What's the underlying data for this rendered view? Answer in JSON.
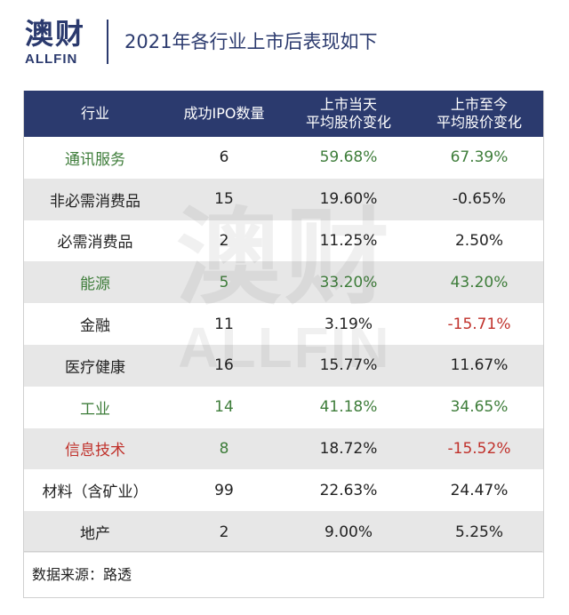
{
  "header": {
    "logo_cn": "澳财",
    "logo_en": "ALLFIN",
    "title": "2021年各行业上市后表现如下"
  },
  "watermark": {
    "cn": "澳财",
    "en": "ALLFIN"
  },
  "table": {
    "columns": [
      "行业",
      "成功IPO数量",
      "上市当天\n平均股价变化",
      "上市至今\n平均股价变化"
    ],
    "rows": [
      {
        "industry": "通讯服务",
        "ipo_count": "6",
        "first_day_change": "59.68%",
        "to_date_change": "67.39%",
        "industry_color": "green",
        "count_color": "",
        "day_color": "green",
        "date_color": "green"
      },
      {
        "industry": "非必需消费品",
        "ipo_count": "15",
        "first_day_change": "19.60%",
        "to_date_change": "-0.65%",
        "industry_color": "",
        "count_color": "",
        "day_color": "",
        "date_color": ""
      },
      {
        "industry": "必需消费品",
        "ipo_count": "2",
        "first_day_change": "11.25%",
        "to_date_change": "2.50%",
        "industry_color": "",
        "count_color": "",
        "day_color": "",
        "date_color": ""
      },
      {
        "industry": "能源",
        "ipo_count": "5",
        "first_day_change": "33.20%",
        "to_date_change": "43.20%",
        "industry_color": "green",
        "count_color": "green",
        "day_color": "green",
        "date_color": "green"
      },
      {
        "industry": "金融",
        "ipo_count": "11",
        "first_day_change": "3.19%",
        "to_date_change": "-15.71%",
        "industry_color": "",
        "count_color": "",
        "day_color": "",
        "date_color": "red"
      },
      {
        "industry": "医疗健康",
        "ipo_count": "16",
        "first_day_change": "15.77%",
        "to_date_change": "11.67%",
        "industry_color": "",
        "count_color": "",
        "day_color": "",
        "date_color": ""
      },
      {
        "industry": "工业",
        "ipo_count": "14",
        "first_day_change": "41.18%",
        "to_date_change": "34.65%",
        "industry_color": "green",
        "count_color": "green",
        "day_color": "green",
        "date_color": "green"
      },
      {
        "industry": "信息技术",
        "ipo_count": "8",
        "first_day_change": "18.72%",
        "to_date_change": "-15.52%",
        "industry_color": "red",
        "count_color": "green",
        "day_color": "",
        "date_color": "red"
      },
      {
        "industry": "材料（含矿业）",
        "ipo_count": "99",
        "first_day_change": "22.63%",
        "to_date_change": "24.47%",
        "industry_color": "",
        "count_color": "",
        "day_color": "",
        "date_color": ""
      },
      {
        "industry": "地产",
        "ipo_count": "2",
        "first_day_change": "9.00%",
        "to_date_change": "5.25%",
        "industry_color": "",
        "count_color": "",
        "day_color": "",
        "date_color": ""
      }
    ]
  },
  "footer": {
    "source": "数据来源：路透"
  },
  "colors": {
    "header_bg": "#2b3a6e",
    "positive": "#3e7d3a",
    "negative": "#c0312b",
    "stripe": "#e7e7e7"
  }
}
